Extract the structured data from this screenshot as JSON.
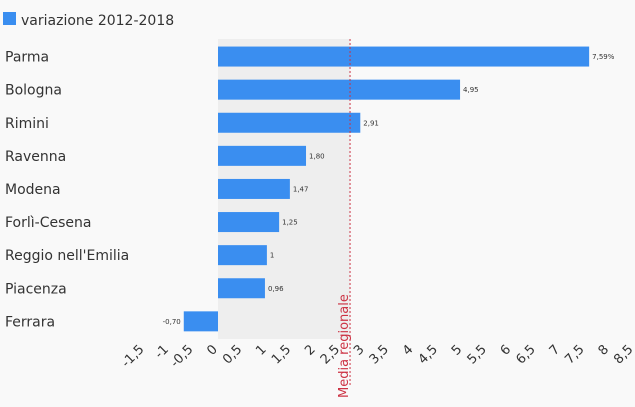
{
  "chart_data": {
    "type": "bar",
    "orientation": "horizontal",
    "categories": [
      "Parma",
      "Bologna",
      "Rimini",
      "Ravenna",
      "Modena",
      "Forlì-Cesena",
      "Reggio nell'Emilia",
      "Piacenza",
      "Ferrara"
    ],
    "series": [
      {
        "name": "variazione 2012-2018",
        "values": [
          7.59,
          4.95,
          2.91,
          1.8,
          1.47,
          1.25,
          1.0,
          0.96,
          -0.7
        ],
        "value_labels": [
          "7,59%",
          "4,95",
          "2,91",
          "1,80",
          "1,47",
          "1,25",
          "1",
          "0,96",
          "-0,70"
        ]
      }
    ],
    "xlim": [
      -1.5,
      8.5
    ],
    "x_ticks": [
      -1.5,
      -1,
      -0.5,
      0,
      0.5,
      1,
      1.5,
      2,
      2.5,
      3,
      3.5,
      4,
      4.5,
      5,
      5.5,
      6,
      6.5,
      7,
      7.5,
      8,
      8.5
    ],
    "x_tick_labels": [
      "-1,5",
      "-1",
      "-0,5",
      "0",
      "0,5",
      "1",
      "1,5",
      "2",
      "2,5",
      "3",
      "3,5",
      "4",
      "4,5",
      "5",
      "5,5",
      "6",
      "6,5",
      "7",
      "7,5",
      "8",
      "8,5"
    ],
    "shaded_band": [
      0,
      2.7
    ],
    "reference_line": {
      "value": 2.7,
      "label": "Media regionale",
      "color": "#cc3344"
    },
    "legend_position": "top-left",
    "grid": false,
    "bar_color": "#3a8ef0",
    "band_color": "#eeeeee"
  }
}
